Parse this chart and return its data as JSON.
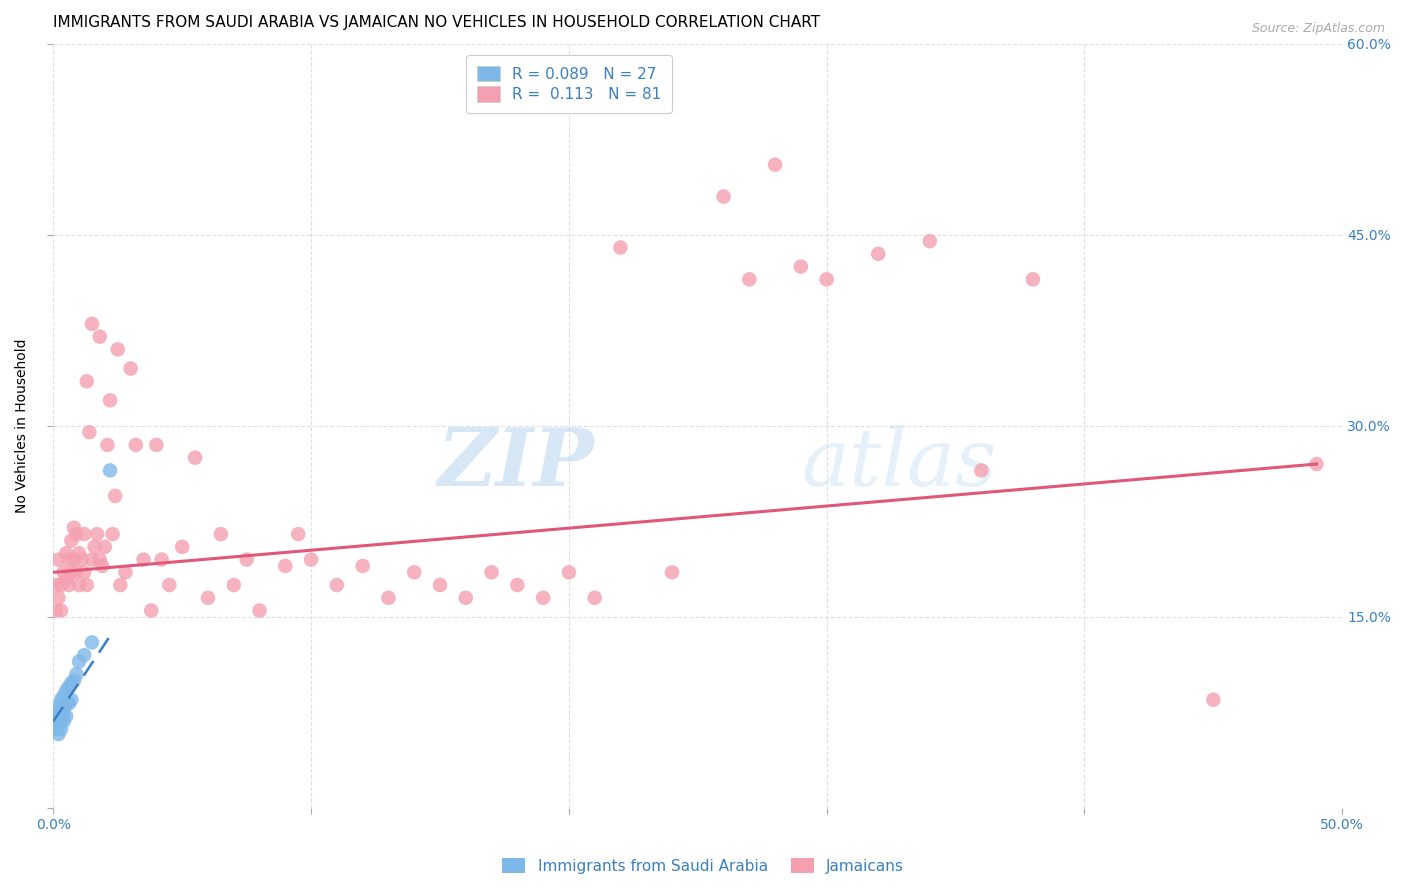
{
  "title": "IMMIGRANTS FROM SAUDI ARABIA VS JAMAICAN NO VEHICLES IN HOUSEHOLD CORRELATION CHART",
  "source": "Source: ZipAtlas.com",
  "ylabel": "No Vehicles in Household",
  "xlim": [
    0.0,
    0.5
  ],
  "ylim": [
    0.0,
    0.6
  ],
  "legend_R_blue": "R = 0.089",
  "legend_N_blue": "N = 27",
  "legend_R_pink": "R =  0.113",
  "legend_N_pink": "N = 81",
  "legend_label_blue": "Immigrants from Saudi Arabia",
  "legend_label_pink": "Jamaicans",
  "watermark_zip": "ZIP",
  "watermark_atlas": "atlas",
  "blue_scatter_x": [
    0.001,
    0.001,
    0.001,
    0.002,
    0.002,
    0.002,
    0.002,
    0.003,
    0.003,
    0.003,
    0.003,
    0.004,
    0.004,
    0.004,
    0.005,
    0.005,
    0.005,
    0.006,
    0.006,
    0.007,
    0.007,
    0.008,
    0.009,
    0.01,
    0.012,
    0.015,
    0.022
  ],
  "blue_scatter_y": [
    0.075,
    0.068,
    0.062,
    0.08,
    0.072,
    0.065,
    0.058,
    0.085,
    0.078,
    0.07,
    0.062,
    0.088,
    0.075,
    0.068,
    0.092,
    0.082,
    0.072,
    0.095,
    0.082,
    0.098,
    0.085,
    0.1,
    0.105,
    0.115,
    0.12,
    0.13,
    0.265
  ],
  "pink_scatter_x": [
    0.001,
    0.001,
    0.002,
    0.002,
    0.003,
    0.003,
    0.004,
    0.005,
    0.005,
    0.006,
    0.006,
    0.007,
    0.007,
    0.008,
    0.008,
    0.009,
    0.009,
    0.01,
    0.01,
    0.011,
    0.012,
    0.012,
    0.013,
    0.013,
    0.014,
    0.015,
    0.015,
    0.016,
    0.017,
    0.018,
    0.018,
    0.019,
    0.02,
    0.021,
    0.022,
    0.023,
    0.024,
    0.025,
    0.026,
    0.028,
    0.03,
    0.032,
    0.035,
    0.038,
    0.04,
    0.042,
    0.045,
    0.05,
    0.055,
    0.06,
    0.065,
    0.07,
    0.075,
    0.08,
    0.09,
    0.095,
    0.1,
    0.11,
    0.12,
    0.13,
    0.14,
    0.15,
    0.16,
    0.17,
    0.18,
    0.19,
    0.2,
    0.21,
    0.22,
    0.24,
    0.26,
    0.27,
    0.28,
    0.29,
    0.3,
    0.32,
    0.34,
    0.36,
    0.38,
    0.45,
    0.49
  ],
  "pink_scatter_y": [
    0.175,
    0.155,
    0.195,
    0.165,
    0.175,
    0.155,
    0.185,
    0.2,
    0.18,
    0.195,
    0.175,
    0.21,
    0.185,
    0.22,
    0.195,
    0.215,
    0.185,
    0.2,
    0.175,
    0.195,
    0.215,
    0.185,
    0.335,
    0.175,
    0.295,
    0.38,
    0.195,
    0.205,
    0.215,
    0.37,
    0.195,
    0.19,
    0.205,
    0.285,
    0.32,
    0.215,
    0.245,
    0.36,
    0.175,
    0.185,
    0.345,
    0.285,
    0.195,
    0.155,
    0.285,
    0.195,
    0.175,
    0.205,
    0.275,
    0.165,
    0.215,
    0.175,
    0.195,
    0.155,
    0.19,
    0.215,
    0.195,
    0.175,
    0.19,
    0.165,
    0.185,
    0.175,
    0.165,
    0.185,
    0.175,
    0.165,
    0.185,
    0.165,
    0.44,
    0.185,
    0.48,
    0.415,
    0.505,
    0.425,
    0.415,
    0.435,
    0.445,
    0.265,
    0.415,
    0.085,
    0.27
  ],
  "blue_line_x": [
    0.0,
    0.022
  ],
  "blue_line_y": [
    0.068,
    0.135
  ],
  "pink_line_x": [
    0.0,
    0.49
  ],
  "pink_line_y": [
    0.185,
    0.27
  ],
  "dot_color_blue": "#7eb8e8",
  "dot_color_pink": "#f4a0b0",
  "line_color_blue": "#3a7fc1",
  "line_color_pink": "#e05878",
  "text_color": "#3a7fc1",
  "grid_color": "#dddddd",
  "background_color": "#ffffff",
  "title_fontsize": 11,
  "axis_label_fontsize": 10,
  "tick_fontsize": 10,
  "legend_fontsize": 11
}
